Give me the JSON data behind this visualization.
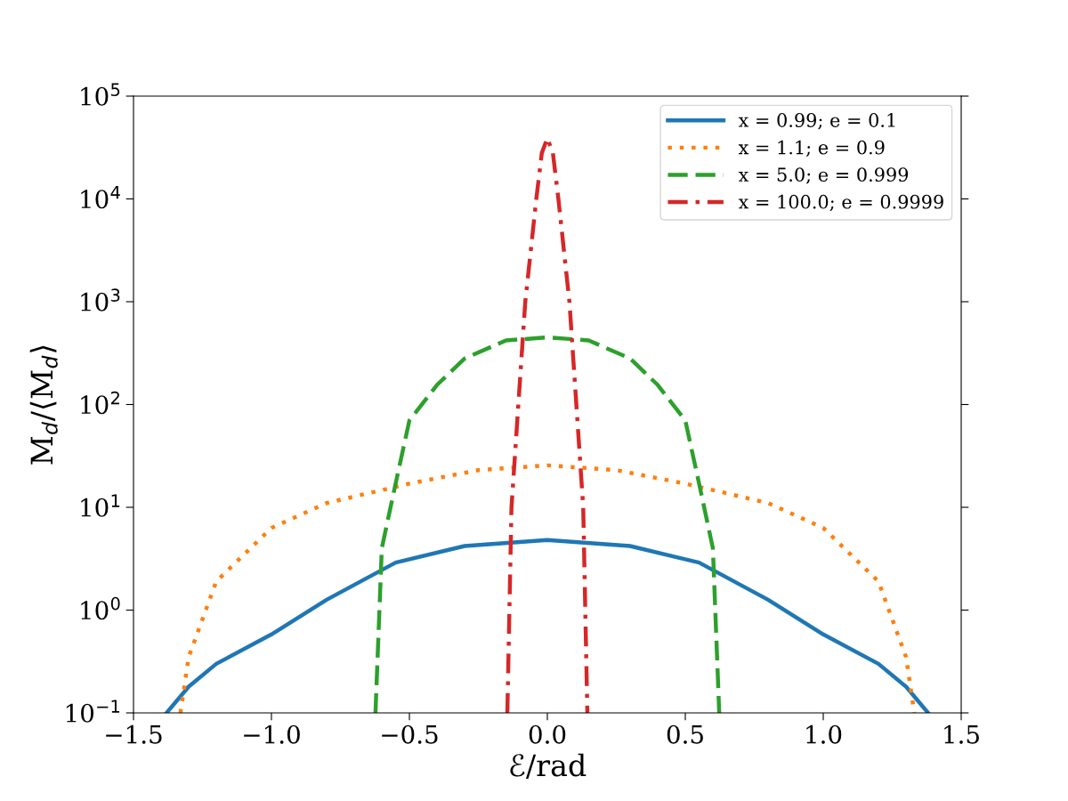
{
  "chart_data": {
    "type": "line",
    "xlabel": "ℰ/rad",
    "ylabel": "M$_{d}$/⟨M$_{d}$⟩",
    "log": "y",
    "grid": false,
    "legend": "top right",
    "xlim": [
      -1.5,
      1.5
    ],
    "xticks": [
      {
        "value": -1.5,
        "label": "−1.5"
      },
      {
        "value": -1.0,
        "label": "−1.0"
      },
      {
        "value": -0.5,
        "label": "−0.5"
      },
      {
        "value": 0.0,
        "label": "0.0"
      },
      {
        "value": 0.5,
        "label": "0.5"
      },
      {
        "value": 1.0,
        "label": "1.0"
      },
      {
        "value": 1.5,
        "label": "1.5"
      }
    ],
    "ylim": [
      0.1,
      100000
    ],
    "yticks": [
      {
        "value": 0.1,
        "label": "10$^{−1}$"
      },
      {
        "value": 1,
        "label": "10$^{0}$"
      },
      {
        "value": 10,
        "label": "10$^{1}$"
      },
      {
        "value": 100,
        "label": "10$^{2}$"
      },
      {
        "value": 1000,
        "label": "10$^{3}$"
      },
      {
        "value": 10000,
        "label": "10$^{4}$"
      },
      {
        "value": 100000,
        "label": "10$^{5}$"
      }
    ],
    "series": [
      {
        "name": "x = 0.99; e = 0.1",
        "color": "#1f77b4",
        "line_style": "solid",
        "x": [
          -1.38,
          -1.3,
          -1.2,
          -1.0,
          -0.8,
          -0.55,
          -0.3,
          0,
          0.3,
          0.55,
          0.8,
          1.0,
          1.2,
          1.3,
          1.38
        ],
        "values": [
          0.1,
          0.18,
          0.3,
          0.58,
          1.26,
          2.9,
          4.2,
          4.8,
          4.2,
          2.9,
          1.26,
          0.58,
          0.3,
          0.18,
          0.1
        ]
      },
      {
        "name": "x = 1.1; e = 0.9",
        "color": "#ff7f0e",
        "line_style": "dotted",
        "x": [
          -1.33,
          -1.3,
          -1.2,
          -1.0,
          -0.8,
          -0.5,
          -0.25,
          0,
          0.25,
          0.5,
          0.8,
          1.0,
          1.2,
          1.3,
          1.33
        ],
        "values": [
          0.1,
          0.35,
          1.9,
          6.3,
          11,
          17,
          23,
          25.6,
          23,
          17,
          11,
          6.3,
          1.9,
          0.35,
          0.1
        ]
      },
      {
        "name": "x = 5.0; e = 0.999",
        "color": "#2ca02c",
        "line_style": "dashed",
        "x": [
          -0.623,
          -0.6,
          -0.55,
          -0.5,
          -0.4,
          -0.3,
          -0.15,
          0,
          0.15,
          0.3,
          0.4,
          0.5,
          0.55,
          0.6,
          0.623
        ],
        "values": [
          0.1,
          4,
          17,
          70,
          155,
          280,
          420,
          450,
          420,
          280,
          155,
          70,
          17,
          4,
          0.1
        ]
      },
      {
        "name": "x = 100.0; e = 0.9999",
        "color": "#d62728",
        "line_style": "dashdot",
        "x": [
          -0.145,
          -0.13,
          -0.1,
          -0.08,
          -0.04,
          -0.02,
          0,
          0.02,
          0.04,
          0.08,
          0.1,
          0.13,
          0.145
        ],
        "values": [
          0.1,
          10,
          160,
          1000,
          10000,
          28000,
          39000,
          28000,
          10000,
          1000,
          160,
          10,
          0.1
        ]
      }
    ]
  }
}
